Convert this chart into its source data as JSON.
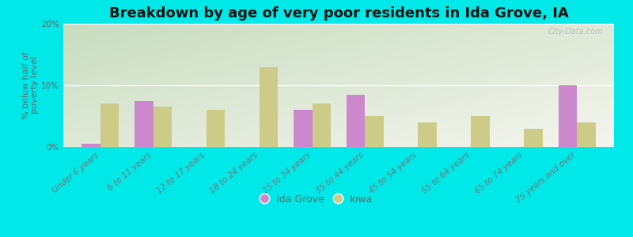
{
  "title": "Breakdown by age of very poor residents in Ida Grove, IA",
  "ylabel": "% below half of\npoverty level",
  "categories": [
    "Under 6 years",
    "6 to 11 years",
    "12 to 17 years",
    "18 to 24 years",
    "25 to 34 years",
    "35 to 44 years",
    "45 to 54 years",
    "55 to 64 years",
    "65 to 74 years",
    "75 years and over"
  ],
  "ida_grove": [
    0.5,
    7.5,
    0.0,
    0.0,
    6.0,
    8.5,
    0.0,
    0.0,
    0.0,
    10.0
  ],
  "iowa": [
    7.0,
    6.5,
    6.0,
    13.0,
    7.0,
    5.0,
    4.0,
    5.0,
    3.0,
    4.0
  ],
  "ida_grove_color": "#cc88cc",
  "iowa_color": "#cccc88",
  "background_outer": "#00e8e8",
  "background_plot_top_left": "#c8ddc0",
  "background_plot_bottom_right": "#f0f5ee",
  "ylim": [
    0,
    20
  ],
  "yticks": [
    0,
    10,
    20
  ],
  "bar_width": 0.35,
  "legend_labels": [
    "Ida Grove",
    "Iowa"
  ],
  "title_fontsize": 13,
  "label_fontsize": 8,
  "tick_fontsize": 7.5,
  "watermark": "City-Data.com"
}
